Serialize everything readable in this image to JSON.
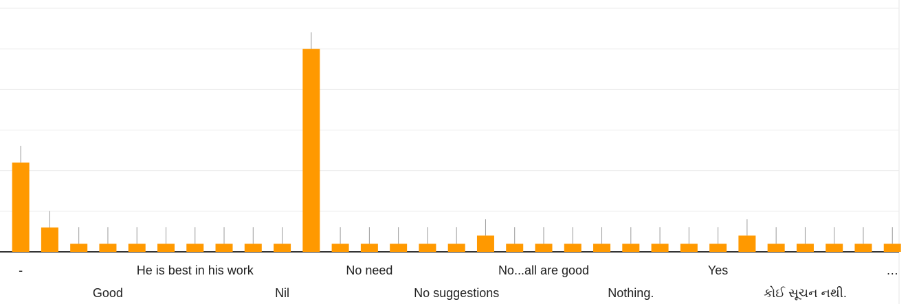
{
  "chart_data": {
    "type": "bar",
    "categories": [
      "-",
      null,
      null,
      "Good",
      null,
      null,
      "He is best in his work",
      null,
      null,
      "Nil",
      null,
      null,
      "No need",
      null,
      null,
      "No suggestions",
      null,
      null,
      "No...all are good",
      null,
      null,
      "Nothing.",
      null,
      null,
      "Yes",
      null,
      null,
      "કોઈ સૂચન નથી.",
      null,
      null,
      "…"
    ],
    "values": [
      11,
      3,
      1,
      1,
      1,
      1,
      1,
      1,
      1,
      1,
      25,
      1,
      1,
      1,
      1,
      1,
      2,
      1,
      1,
      1,
      1,
      1,
      1,
      1,
      1,
      2,
      1,
      1,
      1,
      1,
      1
    ],
    "color": "#ff9900",
    "ylim": [
      0,
      30
    ],
    "yticks": [
      0,
      5,
      10,
      15,
      20,
      25,
      30
    ],
    "grid": true
  }
}
